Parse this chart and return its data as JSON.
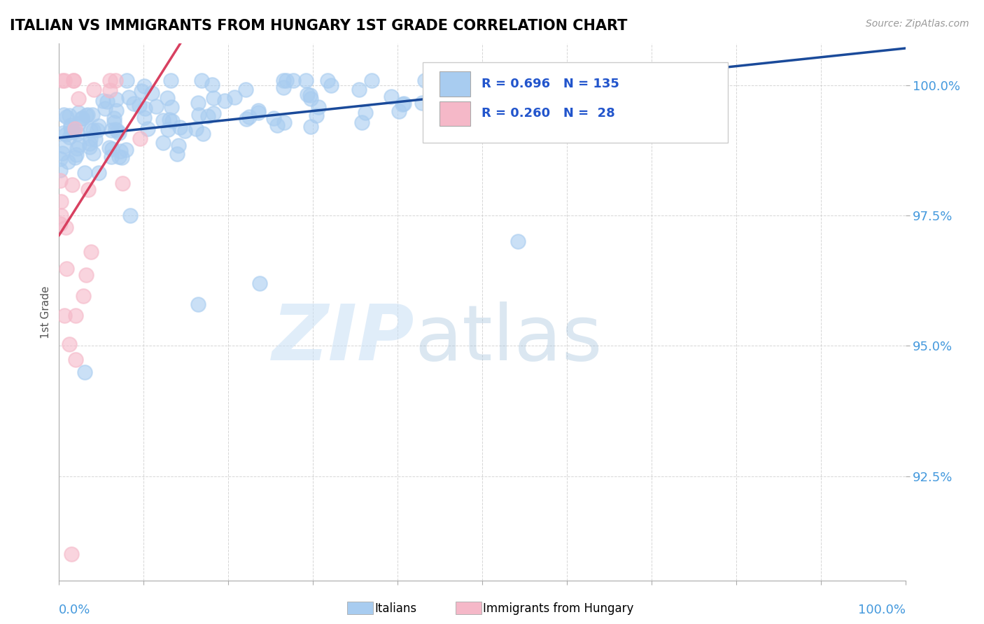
{
  "title": "ITALIAN VS IMMIGRANTS FROM HUNGARY 1ST GRADE CORRELATION CHART",
  "source": "Source: ZipAtlas.com",
  "ylabel": "1st Grade",
  "ytick_labels": [
    "92.5%",
    "95.0%",
    "97.5%",
    "100.0%"
  ],
  "ytick_values": [
    0.925,
    0.95,
    0.975,
    1.0
  ],
  "blue_color": "#A8CCF0",
  "pink_color": "#F5B8C8",
  "trend_blue": "#1A4A9A",
  "trend_pink": "#D84060",
  "background": "#FFFFFF",
  "N_blue": 135,
  "N_pink": 28,
  "R_blue": 0.696,
  "R_pink": 0.26,
  "xmin": 0.0,
  "xmax": 1.0,
  "ymin": 0.905,
  "ymax": 1.008,
  "legend_text_color": "#2255CC",
  "axis_label_color": "#4499DD",
  "grid_color": "#CCCCCC"
}
